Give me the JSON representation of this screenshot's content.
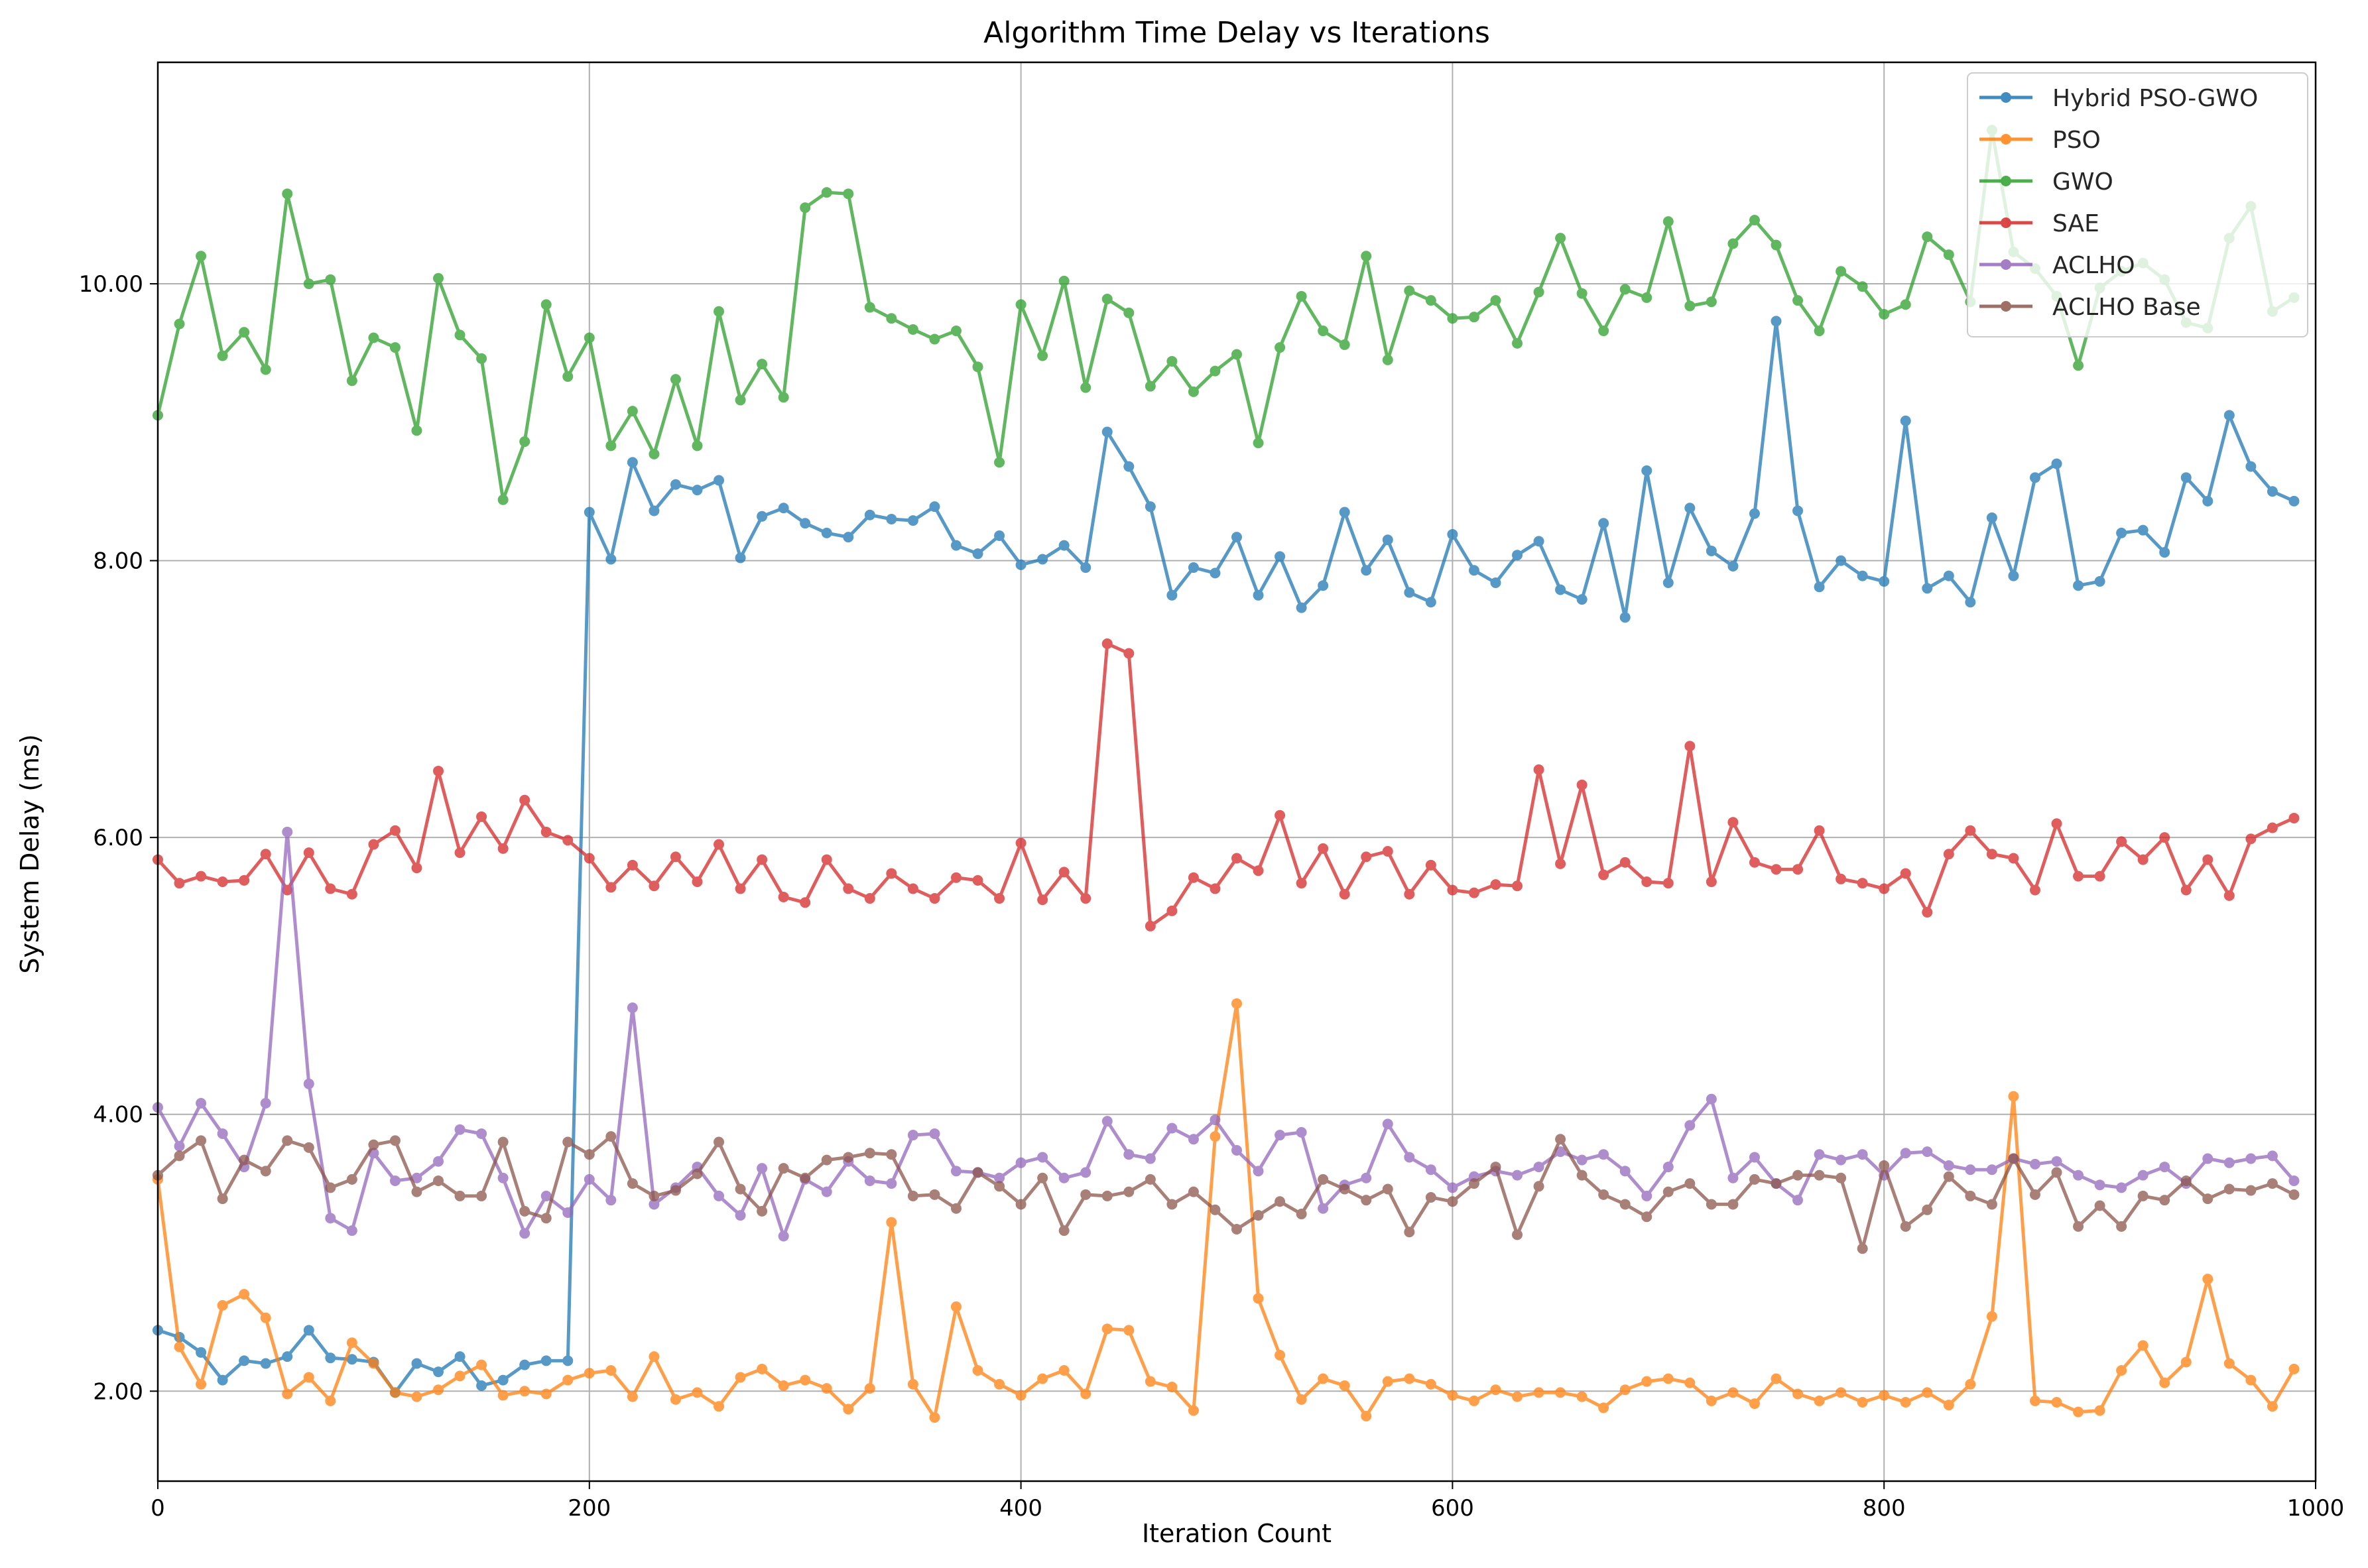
{
  "chart_data": {
    "type": "line",
    "title": "Algorithm Time Delay vs Iterations",
    "xlabel": "Iteration Count",
    "ylabel": "System Delay (ms)",
    "xlim": [
      0,
      1000
    ],
    "ylim": [
      1.35,
      11.6
    ],
    "xticks": [
      0,
      200,
      400,
      600,
      800,
      1000
    ],
    "xtick_labels": [
      "0",
      "200",
      "400",
      "600",
      "800",
      "1000"
    ],
    "yticks": [
      2,
      4,
      6,
      8,
      10
    ],
    "ytick_labels": [
      "2.00",
      "4.00",
      "6.00",
      "8.00",
      "10.00"
    ],
    "grid": true,
    "legend_position": "upper-right",
    "x": [
      0,
      10,
      20,
      30,
      40,
      50,
      60,
      70,
      80,
      90,
      100,
      110,
      120,
      130,
      140,
      150,
      160,
      170,
      180,
      190,
      200,
      210,
      220,
      230,
      240,
      250,
      260,
      270,
      280,
      290,
      300,
      310,
      320,
      330,
      340,
      350,
      360,
      370,
      380,
      390,
      400,
      410,
      420,
      430,
      440,
      450,
      460,
      470,
      480,
      490,
      500,
      510,
      520,
      530,
      540,
      550,
      560,
      570,
      580,
      590,
      600,
      610,
      620,
      630,
      640,
      650,
      660,
      670,
      680,
      690,
      700,
      710,
      720,
      730,
      740,
      750,
      760,
      770,
      780,
      790,
      800,
      810,
      820,
      830,
      840,
      850,
      860,
      870,
      880,
      890,
      900,
      910,
      920,
      930,
      940,
      950,
      960,
      970,
      980,
      990
    ],
    "series": [
      {
        "name": "Hybrid PSO-GWO",
        "color": "#1f77b4",
        "values": [
          2.44,
          2.39,
          2.28,
          2.08,
          2.22,
          2.2,
          2.25,
          2.44,
          2.24,
          2.23,
          2.21,
          1.99,
          2.2,
          2.14,
          2.25,
          2.04,
          2.08,
          2.19,
          2.22,
          2.22,
          8.35,
          8.01,
          8.71,
          8.36,
          8.55,
          8.51,
          8.58,
          8.02,
          8.32,
          8.38,
          8.27,
          8.2,
          8.17,
          8.33,
          8.3,
          8.29,
          8.39,
          8.11,
          8.05,
          8.18,
          7.97,
          8.01,
          8.11,
          7.95,
          8.93,
          8.68,
          8.39,
          7.75,
          7.95,
          7.91,
          8.17,
          7.75,
          8.03,
          7.66,
          7.82,
          8.35,
          7.93,
          8.15,
          7.77,
          7.7,
          8.19,
          7.93,
          7.84,
          8.04,
          8.14,
          7.79,
          7.72,
          8.27,
          7.59,
          8.65,
          7.84,
          8.38,
          8.07,
          7.96,
          8.34,
          9.73,
          8.36,
          7.81,
          8.0,
          7.89,
          7.85,
          9.01,
          7.8,
          7.89,
          7.7,
          8.31,
          7.89,
          8.6,
          8.7,
          7.82,
          7.85,
          8.2,
          8.22,
          8.06,
          8.6,
          8.43,
          9.05,
          8.68,
          8.5,
          8.43
        ]
      },
      {
        "name": "PSO",
        "color": "#ff7f0e",
        "values": [
          3.53,
          2.32,
          2.05,
          2.62,
          2.7,
          2.53,
          1.98,
          2.1,
          1.93,
          2.35,
          2.2,
          1.99,
          1.96,
          2.01,
          2.11,
          2.19,
          1.97,
          2.0,
          1.98,
          2.08,
          2.13,
          2.15,
          1.96,
          2.25,
          1.94,
          1.99,
          1.89,
          2.1,
          2.16,
          2.04,
          2.08,
          2.02,
          1.87,
          2.02,
          3.22,
          2.05,
          1.81,
          2.61,
          2.15,
          2.05,
          1.97,
          2.09,
          2.15,
          1.98,
          2.45,
          2.44,
          2.07,
          2.03,
          1.86,
          3.84,
          4.8,
          2.67,
          2.26,
          1.94,
          2.09,
          2.04,
          1.82,
          2.07,
          2.09,
          2.05,
          1.97,
          1.93,
          2.01,
          1.96,
          1.99,
          1.99,
          1.96,
          1.88,
          2.01,
          2.07,
          2.09,
          2.06,
          1.93,
          1.99,
          1.91,
          2.09,
          1.98,
          1.93,
          1.99,
          1.92,
          1.97,
          1.92,
          1.99,
          1.9,
          2.05,
          2.54,
          4.13,
          1.93,
          1.92,
          1.85,
          1.86,
          2.15,
          2.33,
          2.06,
          2.21,
          2.81,
          2.2,
          2.08,
          1.89,
          2.16
        ]
      },
      {
        "name": "GWO",
        "color": "#2ca02c",
        "values": [
          9.05,
          9.71,
          10.2,
          9.48,
          9.65,
          9.38,
          10.65,
          10.0,
          10.03,
          9.3,
          9.61,
          9.54,
          8.94,
          10.04,
          9.63,
          9.46,
          8.44,
          8.86,
          9.85,
          9.33,
          9.61,
          8.83,
          9.08,
          8.77,
          9.31,
          8.83,
          9.8,
          9.16,
          9.42,
          9.18,
          10.55,
          10.66,
          10.65,
          9.83,
          9.75,
          9.67,
          9.6,
          9.66,
          9.4,
          8.71,
          9.85,
          9.48,
          10.02,
          9.25,
          9.89,
          9.79,
          9.26,
          9.44,
          9.22,
          9.37,
          9.49,
          8.85,
          9.54,
          9.91,
          9.66,
          9.56,
          10.2,
          9.45,
          9.95,
          9.88,
          9.75,
          9.76,
          9.88,
          9.57,
          9.94,
          10.33,
          9.93,
          9.66,
          9.96,
          9.9,
          10.45,
          9.84,
          9.87,
          10.29,
          10.46,
          10.28,
          9.88,
          9.66,
          10.09,
          9.98,
          9.78,
          9.85,
          10.34,
          10.21,
          9.87,
          11.11,
          10.23,
          10.11,
          9.91,
          9.41,
          9.97,
          10.09,
          10.15,
          10.03,
          9.72,
          9.68,
          10.33,
          10.56,
          9.8,
          9.9
        ]
      },
      {
        "name": "SAE",
        "color": "#d62728",
        "values": [
          5.84,
          5.67,
          5.72,
          5.68,
          5.69,
          5.88,
          5.62,
          5.89,
          5.63,
          5.59,
          5.95,
          6.05,
          5.78,
          6.48,
          5.89,
          6.15,
          5.92,
          6.27,
          6.04,
          5.98,
          5.85,
          5.64,
          5.8,
          5.65,
          5.86,
          5.68,
          5.95,
          5.63,
          5.84,
          5.57,
          5.53,
          5.84,
          5.63,
          5.56,
          5.74,
          5.63,
          5.56,
          5.71,
          5.69,
          5.56,
          5.96,
          5.55,
          5.75,
          5.56,
          7.4,
          7.33,
          5.36,
          5.47,
          5.71,
          5.63,
          5.85,
          5.76,
          6.16,
          5.67,
          5.92,
          5.59,
          5.86,
          5.9,
          5.59,
          5.8,
          5.62,
          5.6,
          5.66,
          5.65,
          6.49,
          5.81,
          6.38,
          5.73,
          5.82,
          5.68,
          5.67,
          6.66,
          5.68,
          6.11,
          5.82,
          5.77,
          5.77,
          6.05,
          5.7,
          5.67,
          5.63,
          5.74,
          5.46,
          5.88,
          6.05,
          5.88,
          5.85,
          5.62,
          6.1,
          5.72,
          5.72,
          5.97,
          5.84,
          6.0,
          5.62,
          5.84,
          5.58,
          5.99,
          6.07,
          6.14
        ]
      },
      {
        "name": "ACLHO",
        "color": "#9467bd",
        "values": [
          4.05,
          3.77,
          4.08,
          3.86,
          3.62,
          4.08,
          6.04,
          4.22,
          3.25,
          3.16,
          3.72,
          3.52,
          3.54,
          3.66,
          3.89,
          3.86,
          3.54,
          3.14,
          3.41,
          3.29,
          3.53,
          3.38,
          4.77,
          3.35,
          3.47,
          3.62,
          3.41,
          3.27,
          3.61,
          3.12,
          3.53,
          3.44,
          3.66,
          3.52,
          3.5,
          3.85,
          3.86,
          3.59,
          3.58,
          3.54,
          3.65,
          3.69,
          3.54,
          3.58,
          3.95,
          3.71,
          3.68,
          3.9,
          3.82,
          3.96,
          3.74,
          3.59,
          3.85,
          3.87,
          3.32,
          3.49,
          3.54,
          3.93,
          3.69,
          3.6,
          3.47,
          3.55,
          3.59,
          3.56,
          3.62,
          3.73,
          3.67,
          3.71,
          3.59,
          3.41,
          3.62,
          3.92,
          4.11,
          3.54,
          3.69,
          3.5,
          3.38,
          3.71,
          3.67,
          3.71,
          3.56,
          3.72,
          3.73,
          3.63,
          3.6,
          3.6,
          3.68,
          3.64,
          3.66,
          3.56,
          3.49,
          3.47,
          3.56,
          3.62,
          3.5,
          3.68,
          3.65,
          3.68,
          3.7,
          3.52
        ]
      },
      {
        "name": "ACLHO Base",
        "color": "#8c564b",
        "values": [
          3.56,
          3.7,
          3.81,
          3.39,
          3.67,
          3.59,
          3.81,
          3.76,
          3.47,
          3.53,
          3.78,
          3.81,
          3.44,
          3.52,
          3.41,
          3.41,
          3.8,
          3.3,
          3.25,
          3.8,
          3.71,
          3.84,
          3.5,
          3.41,
          3.45,
          3.57,
          3.8,
          3.46,
          3.3,
          3.61,
          3.54,
          3.67,
          3.69,
          3.72,
          3.71,
          3.41,
          3.42,
          3.32,
          3.58,
          3.48,
          3.35,
          3.54,
          3.16,
          3.42,
          3.41,
          3.44,
          3.53,
          3.35,
          3.44,
          3.31,
          3.17,
          3.27,
          3.37,
          3.28,
          3.53,
          3.46,
          3.38,
          3.46,
          3.15,
          3.4,
          3.37,
          3.5,
          3.62,
          3.13,
          3.48,
          3.82,
          3.56,
          3.42,
          3.35,
          3.26,
          3.44,
          3.5,
          3.35,
          3.35,
          3.53,
          3.5,
          3.56,
          3.56,
          3.54,
          3.03,
          3.63,
          3.19,
          3.31,
          3.55,
          3.41,
          3.35,
          3.68,
          3.42,
          3.58,
          3.19,
          3.34,
          3.19,
          3.41,
          3.38,
          3.52,
          3.39,
          3.46,
          3.45,
          3.5,
          3.42
        ]
      }
    ]
  }
}
